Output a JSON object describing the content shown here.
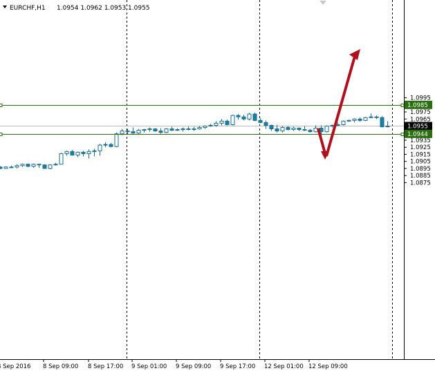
{
  "header": {
    "symbol": "EURCHF,H1",
    "ohlc": "1.0954 1.0962 1.0953 1.0955"
  },
  "chart_data": {
    "type": "candlestick",
    "symbol": "EURCHF",
    "timeframe": "H1",
    "ylim": [
      1.0868,
      1.1002
    ],
    "y_ticks": [
      "1.0995",
      "1.0985",
      "1.0975",
      "1.0965",
      "1.0955",
      "1.0945",
      "1.0935",
      "1.0925",
      "1.0915",
      "1.0905",
      "1.0895",
      "1.0885",
      "1.0875"
    ],
    "x_ticks": [
      "8 Sep 2016",
      "8 Sep 09:00",
      "8 Sep 17:00",
      "9 Sep 01:00",
      "9 Sep 09:00",
      "9 Sep 17:00",
      "12 Sep 01:00",
      "12 Sep 09:00"
    ],
    "price_labels": [
      {
        "text": "1.0985",
        "value": 1.0985,
        "style": "level"
      },
      {
        "text": "1.0955",
        "value": 1.0955,
        "style": "current"
      },
      {
        "text": "1.0944",
        "value": 1.0944,
        "style": "level"
      }
    ],
    "levels": [
      1.0985,
      1.0944
    ],
    "current_price": 1.0955,
    "colors": {
      "bull": "#ffffff",
      "bear": "#1a7fa8",
      "outline": "#1a6e94",
      "level": "#2a6e10",
      "arrow": "#b0101c"
    },
    "candles": [
      [
        1.0897,
        1.0898,
        1.0894,
        1.0895
      ],
      [
        1.0895,
        1.0898,
        1.0895,
        1.0897
      ],
      [
        1.0897,
        1.0899,
        1.0896,
        1.0897
      ],
      [
        1.0897,
        1.0901,
        1.0895,
        1.0899
      ],
      [
        1.0899,
        1.0902,
        1.0897,
        1.0901
      ],
      [
        1.0901,
        1.0902,
        1.0897,
        1.0898
      ],
      [
        1.0898,
        1.0902,
        1.0896,
        1.0901
      ],
      [
        1.0901,
        1.0901,
        1.0896,
        1.09
      ],
      [
        1.09,
        1.0901,
        1.0895,
        1.0895
      ],
      [
        1.0895,
        1.0901,
        1.0894,
        1.09
      ],
      [
        1.09,
        1.0903,
        1.0899,
        1.0901
      ],
      [
        1.0901,
        1.0917,
        1.0901,
        1.0916
      ],
      [
        1.0916,
        1.092,
        1.0913,
        1.0919
      ],
      [
        1.0919,
        1.0921,
        1.0913,
        1.0914
      ],
      [
        1.0914,
        1.0919,
        1.0911,
        1.0918
      ],
      [
        1.0918,
        1.092,
        1.0912,
        1.0916
      ],
      [
        1.0916,
        1.0922,
        1.0909,
        1.0919
      ],
      [
        1.0919,
        1.0923,
        1.0912,
        1.092
      ],
      [
        1.092,
        1.093,
        1.0913,
        1.0928
      ],
      [
        1.0928,
        1.0932,
        1.0925,
        1.0929
      ],
      [
        1.0929,
        1.0931,
        1.0925,
        1.0926
      ],
      [
        1.0926,
        1.0946,
        1.0925,
        1.0944
      ],
      [
        1.0944,
        1.0951,
        1.0942,
        1.0948
      ],
      [
        1.0948,
        1.0951,
        1.0943,
        1.0947
      ],
      [
        1.0947,
        1.0953,
        1.0944,
        1.0945
      ],
      [
        1.0945,
        1.0951,
        1.0943,
        1.0949
      ],
      [
        1.0949,
        1.0951,
        1.0946,
        1.095
      ],
      [
        1.095,
        1.0953,
        1.0947,
        1.0951
      ],
      [
        1.0951,
        1.0952,
        1.0947,
        1.0948
      ],
      [
        1.0948,
        1.0952,
        1.0944,
        1.0946
      ],
      [
        1.0946,
        1.0952,
        1.0945,
        1.0951
      ],
      [
        1.0951,
        1.0954,
        1.0948,
        1.0949
      ],
      [
        1.0949,
        1.0952,
        1.0948,
        1.095
      ],
      [
        1.095,
        1.0953,
        1.0947,
        1.0951
      ],
      [
        1.0951,
        1.0954,
        1.0949,
        1.095
      ],
      [
        1.095,
        1.0954,
        1.0948,
        1.0951
      ],
      [
        1.0951,
        1.0955,
        1.095,
        1.0953
      ],
      [
        1.0953,
        1.0956,
        1.0951,
        1.0955
      ],
      [
        1.0955,
        1.0958,
        1.0954,
        1.0956
      ],
      [
        1.0956,
        1.0962,
        1.0954,
        1.0959
      ],
      [
        1.0959,
        1.0965,
        1.0956,
        1.0962
      ],
      [
        1.0962,
        1.0964,
        1.0956,
        1.0957
      ],
      [
        1.0957,
        1.0971,
        1.0956,
        1.097
      ],
      [
        1.097,
        1.0972,
        1.0964,
        1.0968
      ],
      [
        1.0968,
        1.0971,
        1.0963,
        1.0965
      ],
      [
        1.0965,
        1.0974,
        1.0963,
        1.0972
      ],
      [
        1.0972,
        1.0974,
        1.0962,
        1.0963
      ],
      [
        1.0963,
        1.0966,
        1.0959,
        1.096
      ],
      [
        1.096,
        1.0963,
        1.0951,
        1.0956
      ],
      [
        1.0956,
        1.0957,
        1.0948,
        1.0951
      ],
      [
        1.0951,
        1.0957,
        1.0946,
        1.0948
      ],
      [
        1.0948,
        1.0955,
        1.0946,
        1.0953
      ],
      [
        1.0953,
        1.0955,
        1.0949,
        1.095
      ],
      [
        1.095,
        1.0954,
        1.0948,
        1.0952
      ],
      [
        1.0952,
        1.0953,
        1.0948,
        1.095
      ],
      [
        1.095,
        1.0955,
        1.0948,
        1.0949
      ],
      [
        1.0949,
        1.0951,
        1.0946,
        1.0947
      ],
      [
        1.0947,
        1.0956,
        1.0946,
        1.0952
      ],
      [
        1.0952,
        1.0956,
        1.0932,
        1.0947
      ],
      [
        1.0947,
        1.0956,
        1.0946,
        1.0955
      ],
      [
        1.0955,
        1.0957,
        1.0953,
        1.0956
      ],
      [
        1.0956,
        1.096,
        1.0955,
        1.0957
      ],
      [
        1.0957,
        1.0963,
        1.0956,
        1.0962
      ],
      [
        1.0962,
        1.0964,
        1.0961,
        1.0963
      ],
      [
        1.0963,
        1.0966,
        1.096,
        1.0965
      ],
      [
        1.0965,
        1.0967,
        1.0961,
        1.0963
      ],
      [
        1.0963,
        1.0968,
        1.0962,
        1.0967
      ],
      [
        1.0967,
        1.0973,
        1.0966,
        1.0968
      ],
      [
        1.0968,
        1.097,
        1.0965,
        1.0967
      ],
      [
        1.0967,
        1.0969,
        1.0953,
        1.0954
      ],
      [
        1.0954,
        1.0962,
        1.0953,
        1.0955
      ]
    ]
  }
}
